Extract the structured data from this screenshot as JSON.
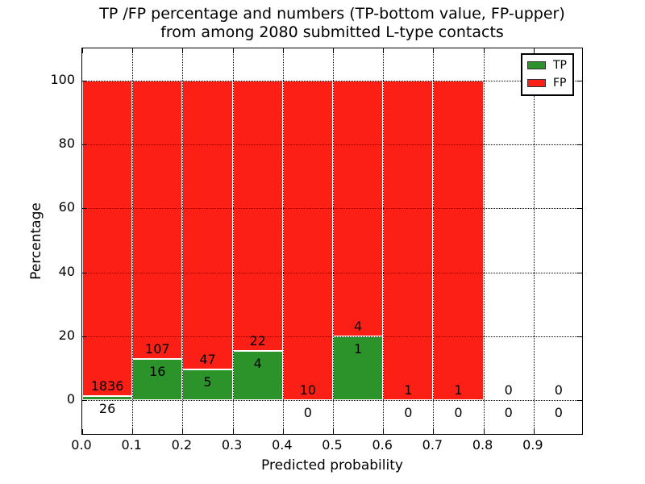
{
  "chart_data": {
    "type": "bar",
    "stacked": true,
    "title_lines": [
      "TP /FP percentage and numbers (TP-bottom value, FP-upper)",
      "from among 2080 submitted L-type contacts"
    ],
    "total_submitted": 2080,
    "xlabel": "Predicted probability",
    "ylabel": "Percentage",
    "xlim": [
      0.0,
      1.0
    ],
    "ylim": [
      -11,
      110
    ],
    "bin_width": 0.1,
    "x_tick_labels": [
      "0.0",
      "0.1",
      "0.2",
      "0.3",
      "0.4",
      "0.5",
      "0.6",
      "0.7",
      "0.8",
      "0.9"
    ],
    "y_ticks": [
      0,
      20,
      40,
      60,
      80,
      100
    ],
    "grid": {
      "visible": true,
      "style": "dotted",
      "color": "#000000"
    },
    "categories": [
      "0.0-0.1",
      "0.1-0.2",
      "0.2-0.3",
      "0.3-0.4",
      "0.4-0.5",
      "0.5-0.6",
      "0.6-0.7",
      "0.7-0.8",
      "0.8-0.9",
      "0.9-1.0"
    ],
    "series": [
      {
        "name": "TP",
        "counts": [
          26,
          16,
          5,
          4,
          0,
          1,
          0,
          0,
          0,
          0
        ],
        "pct": [
          1.4,
          13.0,
          9.6,
          15.4,
          0.0,
          20.0,
          0.0,
          0.0,
          0.0,
          0.0
        ]
      },
      {
        "name": "FP",
        "counts": [
          1836,
          107,
          47,
          22,
          10,
          4,
          1,
          1,
          0,
          0
        ],
        "pct": [
          98.6,
          87.0,
          90.4,
          84.6,
          100.0,
          80.0,
          100.0,
          100.0,
          0.0,
          0.0
        ]
      }
    ],
    "colors": {
      "tp": "#2b9329",
      "fp": "#fb1f15",
      "bar_edge": "#ffffff",
      "axes": "#000000",
      "background": "#ffffff"
    },
    "legend": {
      "position": "upper right",
      "entries": [
        {
          "label": "TP",
          "color": "#2b9329"
        },
        {
          "label": "FP",
          "color": "#fb1f15"
        }
      ]
    }
  }
}
